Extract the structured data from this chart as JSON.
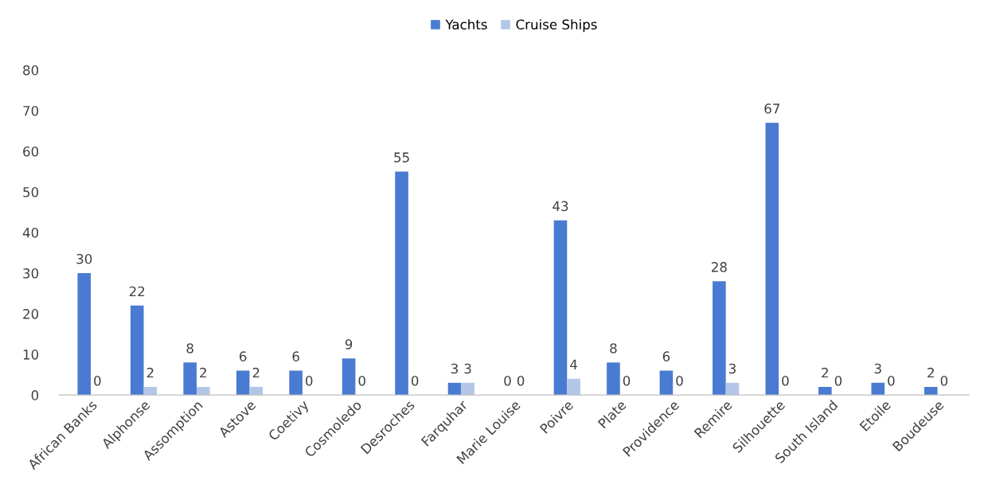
{
  "chart_data": {
    "type": "bar",
    "categories": [
      "African Banks",
      "Alphonse",
      "Assomption",
      "Astove",
      "Coetivy",
      "Cosmoledo",
      "Desroches",
      "Farquhar",
      "Marie Louise",
      "Poivre",
      "Plate",
      "Providence",
      "Remire",
      "Silhouette",
      "South Island",
      "Etoile",
      "Boudeuse"
    ],
    "series": [
      {
        "name": "Yachts",
        "color": "#4a7bd2",
        "values": [
          30,
          22,
          8,
          6,
          6,
          9,
          55,
          3,
          0,
          43,
          8,
          6,
          28,
          67,
          2,
          3,
          2
        ]
      },
      {
        "name": "Cruise Ships",
        "color": "#b4c6e8",
        "values": [
          0,
          2,
          2,
          2,
          0,
          0,
          0,
          3,
          0,
          4,
          0,
          0,
          3,
          0,
          0,
          0,
          0
        ]
      }
    ],
    "ylim": [
      0,
      80
    ],
    "yticks": [
      0,
      10,
      20,
      30,
      40,
      50,
      60,
      70,
      80
    ],
    "data_labels": true,
    "legend": "top",
    "grid": false
  }
}
